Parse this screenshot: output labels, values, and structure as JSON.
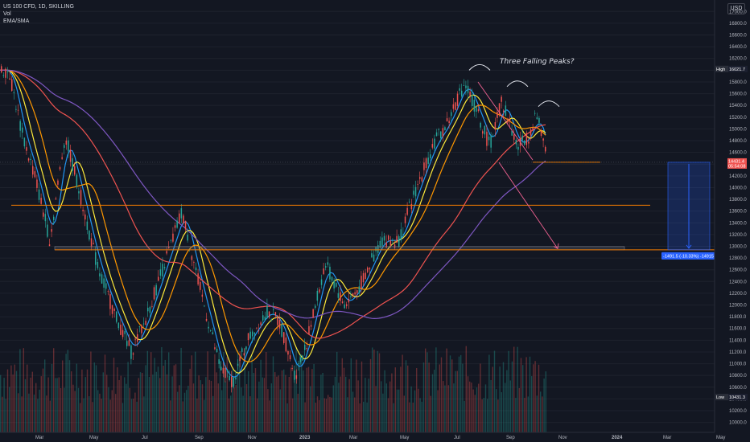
{
  "legend": {
    "symbol": "US 100 CFD, 1D, SKILLING",
    "vol": "Vol",
    "ma": "EMA/SMA"
  },
  "currency": "USD",
  "annotation": "Three Falling Peaks?",
  "high_tag": {
    "label": "High",
    "value": "16021.7"
  },
  "low_tag": {
    "label": "Low",
    "value": "10431.3"
  },
  "price_tag": {
    "value": "14431.4",
    "sub": "05:54:08"
  },
  "measure_label": "-1491.5 (-10.33%) -14915",
  "colors": {
    "bg": "#131722",
    "up": "#26a69a",
    "down": "#ef5350",
    "ema_fast": "#2196f3",
    "ema_mid": "#ffeb3b",
    "ema_slow": "#ff9800",
    "sma_200": "#ef5350",
    "sma_300": "#7e57c2",
    "hline": "#f57c00",
    "measure": "#2962ff"
  },
  "chart_data": {
    "type": "line",
    "title": "US 100 CFD, 1D, SKILLING",
    "x_ticks": [
      "Mar",
      "May",
      "Jul",
      "Sep",
      "Nov",
      "2023",
      "Mar",
      "May",
      "Jul",
      "Sep",
      "Nov",
      "2024",
      "Mar",
      "May"
    ],
    "y_ticks": [
      10000,
      10200,
      10400,
      10600,
      10800,
      11000,
      11200,
      11400,
      11600,
      11800,
      12000,
      12200,
      12400,
      12600,
      12800,
      13000,
      13200,
      13400,
      13600,
      13800,
      14000,
      14200,
      14400,
      14600,
      14800,
      15000,
      15200,
      15400,
      15600,
      15800,
      16000,
      16200,
      16400,
      16600,
      16800,
      17000
    ],
    "ylim": [
      9940,
      17100
    ],
    "price_path": [
      [
        "2022-01-20",
        16000
      ],
      [
        "2022-02-05",
        14900
      ],
      [
        "2022-02-20",
        14200
      ],
      [
        "2022-03-10",
        13100
      ],
      [
        "2022-03-28",
        14900
      ],
      [
        "2022-04-15",
        13900
      ],
      [
        "2022-05-05",
        12700
      ],
      [
        "2022-05-25",
        11900
      ],
      [
        "2022-06-15",
        11200
      ],
      [
        "2022-07-01",
        11700
      ],
      [
        "2022-07-20",
        12500
      ],
      [
        "2022-08-15",
        13600
      ],
      [
        "2022-09-05",
        12300
      ],
      [
        "2022-09-30",
        10900
      ],
      [
        "2022-10-15",
        10700
      ],
      [
        "2022-11-01",
        11400
      ],
      [
        "2022-11-25",
        11900
      ],
      [
        "2022-12-10",
        11700
      ],
      [
        "2022-12-28",
        10800
      ],
      [
        "2023-01-10",
        11300
      ],
      [
        "2023-02-02",
        12700
      ],
      [
        "2023-02-25",
        12000
      ],
      [
        "2023-03-15",
        12300
      ],
      [
        "2023-04-10",
        13100
      ],
      [
        "2023-05-01",
        13100
      ],
      [
        "2023-05-20",
        13900
      ],
      [
        "2023-06-10",
        14700
      ],
      [
        "2023-06-28",
        15100
      ],
      [
        "2023-07-19",
        15800
      ],
      [
        "2023-08-05",
        15200
      ],
      [
        "2023-08-18",
        14700
      ],
      [
        "2023-09-01",
        15500
      ],
      [
        "2023-09-20",
        14700
      ],
      [
        "2023-10-05",
        14900
      ],
      [
        "2023-10-12",
        15300
      ],
      [
        "2023-10-25",
        14500
      ]
    ],
    "volume_note": "volume bars along bottom",
    "levels": {
      "upper_support": 14431.4,
      "mid_resistance": 13700,
      "target_support": 12940
    },
    "high": 16021.7,
    "low": 10431.3,
    "measure": {
      "from": 14431.4,
      "to": 12940,
      "change": -1491.5,
      "pct": -10.33
    }
  }
}
